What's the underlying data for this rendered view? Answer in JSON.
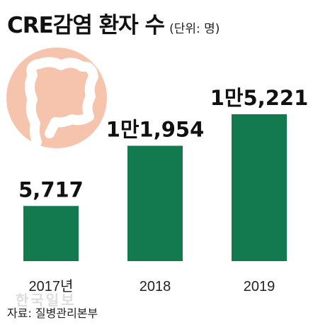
{
  "title": "CRE감염 환자 수",
  "unit_note": "(단위: 명)",
  "source": "자료: 질병관리본부",
  "watermark": "한국일보",
  "illustration": "colon-icon",
  "colors": {
    "bar": "#137a50",
    "circle": "#f6c4ad",
    "colon": "#ffffff"
  },
  "chart_data": {
    "type": "bar",
    "categories": [
      "2017년",
      "2018",
      "2019"
    ],
    "values": [
      5717,
      11954,
      15221
    ],
    "value_labels": [
      "5,717",
      "1만1,954",
      "1만5,221"
    ],
    "title": "CRE감염 환자 수",
    "xlabel": "",
    "ylabel": "",
    "ylim": [
      0,
      15221
    ],
    "grid": false,
    "legend": "none"
  }
}
